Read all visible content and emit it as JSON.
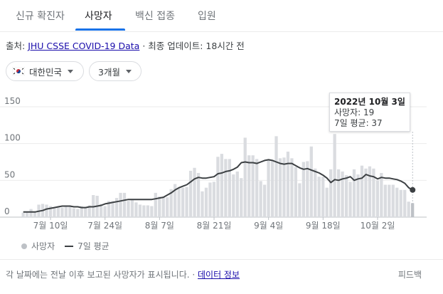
{
  "tabs": [
    {
      "label": "신규 확진자",
      "active": false
    },
    {
      "label": "사망자",
      "active": true
    },
    {
      "label": "백신 접종",
      "active": false
    },
    {
      "label": "입원",
      "active": false
    }
  ],
  "source": {
    "prefix": "출처:",
    "link": "JHU CSSE COVID-19 Data",
    "suffix": "· 최종 업데이트: 18시간 전"
  },
  "filters": {
    "country": "대한민국",
    "period": "3개월"
  },
  "tooltip": {
    "date": "2022년 10월 3일",
    "deaths_line": "사망자: 19",
    "avg_line": "7일 평균: 37"
  },
  "legend": {
    "deaths": "사망자",
    "avg": "7일 평균"
  },
  "footer": {
    "note": "각 날짜에는 전날 이후 보고된 사망자가 표시됩니다. ·",
    "data_info": "데이터 정보",
    "feedback": "피드백"
  },
  "colors": {
    "bar": "#dadce0",
    "bar_highlight": "#bdc1c6",
    "line": "#3c4043",
    "accent": "#1a73e8"
  },
  "chart_data": {
    "type": "bar",
    "ylim": [
      0,
      150
    ],
    "y_ticks": [
      0,
      50,
      100,
      150
    ],
    "x_tick_labels": [
      "7월 10일",
      "7월 24일",
      "8월 7일",
      "8월 21일",
      "9월 4일",
      "9월 18일",
      "10월 2일"
    ],
    "x_tick_indices": [
      7,
      21,
      35,
      49,
      63,
      77,
      91
    ],
    "grid": true,
    "series": [
      {
        "name": "사망자",
        "kind": "bar",
        "values": [
          6,
          7,
          11,
          8,
          17,
          18,
          17,
          15,
          12,
          14,
          13,
          15,
          14,
          12,
          11,
          15,
          14,
          16,
          30,
          29,
          18,
          15,
          22,
          22,
          26,
          33,
          33,
          22,
          24,
          20,
          17,
          16,
          16,
          15,
          33,
          28,
          28,
          27,
          38,
          45,
          40,
          40,
          41,
          63,
          67,
          60,
          35,
          40,
          47,
          48,
          82,
          86,
          79,
          79,
          58,
          62,
          53,
          108,
          84,
          84,
          79,
          49,
          44,
          77,
          78,
          110,
          80,
          81,
          89,
          80,
          68,
          46,
          75,
          76,
          96,
          66,
          55,
          55,
          40,
          65,
          113,
          65,
          62,
          57,
          48,
          65,
          58,
          70,
          66,
          69,
          66,
          50,
          60,
          44,
          44,
          44,
          40,
          37,
          37,
          21,
          19
        ],
        "highlight_index": 100
      },
      {
        "name": "7일 평균",
        "kind": "line",
        "values": [
          7,
          7,
          7,
          7,
          8,
          9,
          11,
          12,
          13,
          14,
          15,
          15,
          15,
          14,
          14,
          13,
          13,
          14,
          14,
          15,
          16,
          18,
          19,
          20,
          21,
          22,
          23,
          24,
          24,
          24,
          24,
          24,
          24,
          24,
          25,
          26,
          27,
          30,
          33,
          37,
          40,
          42,
          44,
          48,
          52,
          54,
          53,
          53,
          54,
          55,
          59,
          60,
          62,
          63,
          65,
          68,
          74,
          75,
          74,
          74,
          73,
          75,
          77,
          78,
          77,
          75,
          73,
          72,
          73,
          73,
          70,
          67,
          65,
          66,
          64,
          62,
          60,
          57,
          53,
          47,
          51,
          50,
          52,
          53,
          55,
          50,
          52,
          53,
          58,
          56,
          55,
          52,
          54,
          53,
          53,
          52,
          51,
          49,
          46,
          40,
          37
        ]
      }
    ]
  }
}
